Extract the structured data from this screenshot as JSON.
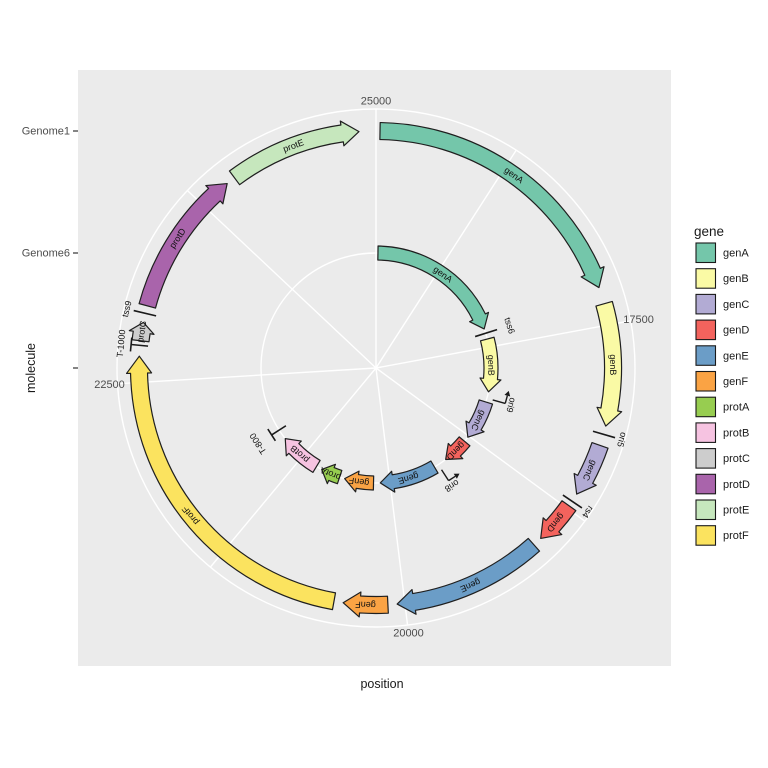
{
  "figure": {
    "xlabel": "position",
    "ylabel": "molecule",
    "theta_ticks": [
      {
        "label": "25000",
        "position": 25000
      },
      {
        "label": "17500",
        "position": 17500
      },
      {
        "label": "20000",
        "position": 20000
      },
      {
        "label": "22500",
        "position": 22500
      }
    ],
    "theta_minor_positions": [
      16250,
      18750,
      21250,
      23750
    ],
    "r_tick_labels": [
      "Genome1",
      "Genome6",
      ""
    ]
  },
  "legend": {
    "title": "gene",
    "entries": [
      {
        "label": "genA",
        "color": "#74C6AA"
      },
      {
        "label": "genB",
        "color": "#FAFAA5"
      },
      {
        "label": "genC",
        "color": "#B2ABD4"
      },
      {
        "label": "genD",
        "color": "#F3635D"
      },
      {
        "label": "genE",
        "color": "#6B9DC7"
      },
      {
        "label": "genF",
        "color": "#FAA344"
      },
      {
        "label": "protA",
        "color": "#97CD50"
      },
      {
        "label": "protB",
        "color": "#F6C3E1"
      },
      {
        "label": "protC",
        "color": "#CDCDCD"
      },
      {
        "label": "protD",
        "color": "#A964AB"
      },
      {
        "label": "protE",
        "color": "#C6E7BD"
      },
      {
        "label": "protF",
        "color": "#FBE35F"
      }
    ]
  },
  "chart_data": {
    "type": "circular_gene_map",
    "orientation": "positions increase clockwise, 25000 at top",
    "genomes": [
      {
        "molecule": "Genome1",
        "track": "outer",
        "genes": [
          {
            "name": "genA",
            "start": 15400,
            "end": 17250
          },
          {
            "name": "genB",
            "start": 17360,
            "end": 18160
          },
          {
            "name": "genC",
            "start": 18290,
            "end": 18640
          },
          {
            "name": "genD",
            "start": 18730,
            "end": 19010
          },
          {
            "name": "genE",
            "start": 19070,
            "end": 20050
          },
          {
            "name": "genF",
            "start": 20110,
            "end": 20400
          },
          {
            "name": "protF",
            "start": 20460,
            "end": 22670
          },
          {
            "name": "protC",
            "start": 22770,
            "end": 22890
          },
          {
            "name": "protD",
            "start": 23000,
            "end": 23960
          },
          {
            "name": "protE",
            "start": 24020,
            "end": 24890
          }
        ],
        "features": [
          {
            "name": "ori5",
            "position": 18215,
            "glyph": "tick"
          },
          {
            "name": "rs4",
            "position": 18695,
            "glyph": "tick"
          },
          {
            "name": "T-1000",
            "position": 22740,
            "glyph": "terminator"
          },
          {
            "name": "tss9",
            "position": 22950,
            "glyph": "tick"
          }
        ]
      },
      {
        "molecule": "Genome6",
        "track": "inner",
        "genes": [
          {
            "name": "genA",
            "start": 15400,
            "end": 17250
          },
          {
            "name": "genB",
            "start": 17390,
            "end": 18100
          },
          {
            "name": "genC",
            "start": 18240,
            "end": 18770
          },
          {
            "name": "genD",
            "start": 18840,
            "end": 19190
          },
          {
            "name": "genE",
            "start": 19370,
            "end": 20130
          },
          {
            "name": "genF",
            "start": 20220,
            "end": 20610
          },
          {
            "name": "protA",
            "start": 20680,
            "end": 20940
          },
          {
            "name": "protB",
            "start": 21020,
            "end": 21580
          }
        ],
        "features": [
          {
            "name": "tss6",
            "position": 17310,
            "glyph": "tick"
          },
          {
            "name": "ori9",
            "position": 18190,
            "glyph": "origin"
          },
          {
            "name": "ori8",
            "position": 19310,
            "glyph": "origin"
          },
          {
            "name": "T-800",
            "position": 21720,
            "glyph": "terminator"
          }
        ]
      }
    ]
  }
}
